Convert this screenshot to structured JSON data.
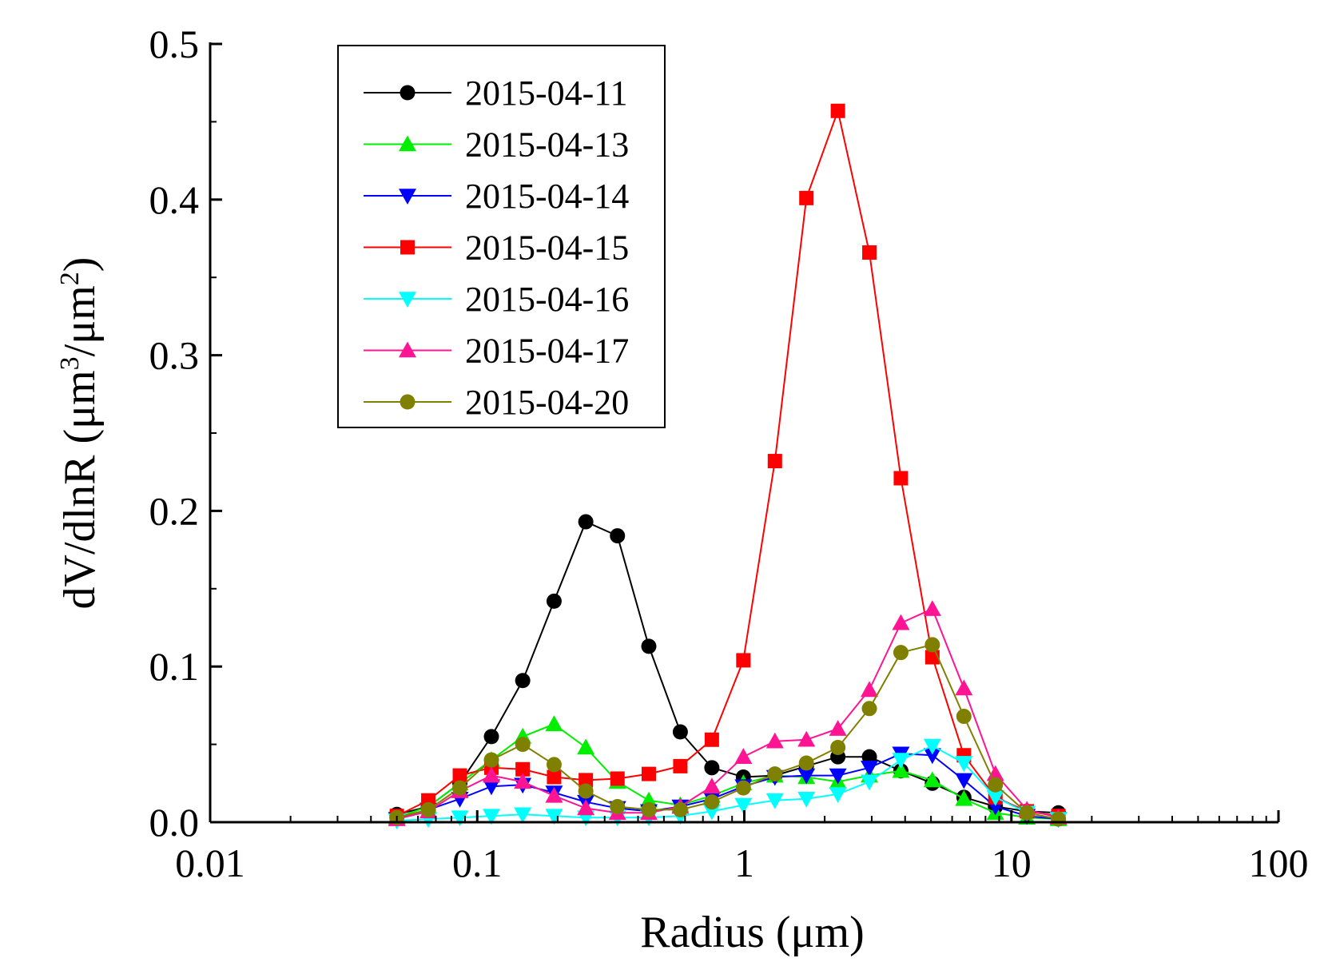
{
  "chart_data": {
    "type": "line",
    "xscale": "log",
    "xlim": [
      0.01,
      100
    ],
    "ylim": [
      0,
      0.5
    ],
    "xticks": [
      {
        "value": 0.01,
        "label": "0.01"
      },
      {
        "value": 0.1,
        "label": "0.1"
      },
      {
        "value": 1,
        "label": "1"
      },
      {
        "value": 10,
        "label": "10"
      },
      {
        "value": 100,
        "label": "100"
      }
    ],
    "yticks": [
      {
        "value": 0.0,
        "label": "0.0"
      },
      {
        "value": 0.1,
        "label": "0.1"
      },
      {
        "value": 0.2,
        "label": "0.2"
      },
      {
        "value": 0.3,
        "label": "0.3"
      },
      {
        "value": 0.4,
        "label": "0.4"
      },
      {
        "value": 0.5,
        "label": "0.5"
      }
    ],
    "xlabel": "Radius (μm)",
    "ylabel": {
      "prefix": "dV/dlnR (μm",
      "sup1": "3",
      "mid": "/μm",
      "sup2": "2",
      "suffix": ")"
    },
    "legend_position": "top-left",
    "x": [
      0.05,
      0.0656,
      0.0861,
      0.113,
      0.148,
      0.194,
      0.255,
      0.335,
      0.439,
      0.576,
      0.756,
      0.992,
      1.302,
      1.708,
      2.241,
      2.94,
      3.857,
      5.06,
      6.641,
      8.713,
      11.432,
      15.0
    ],
    "series": [
      {
        "name": "2015-04-11",
        "color": "#000000",
        "marker": "circle",
        "values": [
          0.005,
          0.01,
          0.025,
          0.055,
          0.091,
          0.142,
          0.193,
          0.184,
          0.113,
          0.058,
          0.035,
          0.029,
          0.03,
          0.036,
          0.042,
          0.042,
          0.033,
          0.025,
          0.016,
          0.01,
          0.007,
          0.006
        ]
      },
      {
        "name": "2015-04-13",
        "color": "#00ee00",
        "marker": "triangle-up",
        "values": [
          0.003,
          0.01,
          0.025,
          0.04,
          0.055,
          0.063,
          0.048,
          0.026,
          0.014,
          0.011,
          0.017,
          0.025,
          0.03,
          0.029,
          0.026,
          0.03,
          0.033,
          0.027,
          0.015,
          0.006,
          0.003,
          0.002
        ]
      },
      {
        "name": "2015-04-14",
        "color": "#0000ff",
        "marker": "triangle-down",
        "values": [
          0.002,
          0.008,
          0.015,
          0.023,
          0.024,
          0.019,
          0.013,
          0.009,
          0.007,
          0.01,
          0.015,
          0.023,
          0.029,
          0.03,
          0.03,
          0.035,
          0.044,
          0.043,
          0.027,
          0.01,
          0.004,
          0.002
        ]
      },
      {
        "name": "2015-04-15",
        "color": "#ff0000",
        "marker": "square",
        "values": [
          0.004,
          0.014,
          0.03,
          0.035,
          0.034,
          0.029,
          0.027,
          0.028,
          0.031,
          0.036,
          0.053,
          0.104,
          0.232,
          0.401,
          0.457,
          0.366,
          0.221,
          0.106,
          0.043,
          0.016,
          0.007,
          0.004
        ]
      },
      {
        "name": "2015-04-16",
        "color": "#00ffff",
        "marker": "triangle-down",
        "values": [
          0.001,
          0.002,
          0.003,
          0.004,
          0.005,
          0.004,
          0.003,
          0.003,
          0.003,
          0.004,
          0.007,
          0.011,
          0.014,
          0.015,
          0.018,
          0.026,
          0.04,
          0.049,
          0.038,
          0.016,
          0.006,
          0.002
        ]
      },
      {
        "name": "2015-04-17",
        "color": "#ff1493",
        "marker": "triangle-up",
        "values": [
          0.002,
          0.007,
          0.02,
          0.03,
          0.026,
          0.017,
          0.009,
          0.006,
          0.006,
          0.01,
          0.023,
          0.042,
          0.052,
          0.053,
          0.06,
          0.085,
          0.128,
          0.137,
          0.086,
          0.031,
          0.008,
          0.003
        ]
      },
      {
        "name": "2015-04-20",
        "color": "#808000",
        "marker": "circle",
        "values": [
          0.003,
          0.008,
          0.022,
          0.04,
          0.05,
          0.037,
          0.02,
          0.01,
          0.008,
          0.008,
          0.013,
          0.022,
          0.031,
          0.038,
          0.048,
          0.073,
          0.109,
          0.114,
          0.068,
          0.024,
          0.006,
          0.002
        ]
      }
    ]
  }
}
